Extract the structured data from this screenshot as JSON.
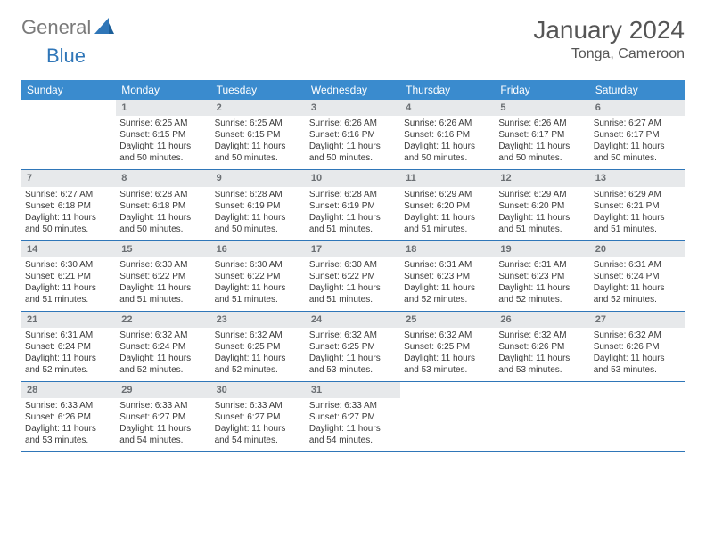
{
  "logo": {
    "text1": "General",
    "text2": "Blue",
    "color_general": "#7a7a7a",
    "color_blue": "#2f76b8"
  },
  "title": "January 2024",
  "location": "Tonga, Cameroon",
  "header_bg": "#3a8bce",
  "rule_color": "#2f76b8",
  "daynum_bg": "#e7e9eb",
  "day_names": [
    "Sunday",
    "Monday",
    "Tuesday",
    "Wednesday",
    "Thursday",
    "Friday",
    "Saturday"
  ],
  "weeks": [
    [
      {
        "n": "",
        "sr": "",
        "ss": "",
        "dl": ""
      },
      {
        "n": "1",
        "sr": "Sunrise: 6:25 AM",
        "ss": "Sunset: 6:15 PM",
        "dl": "Daylight: 11 hours and 50 minutes."
      },
      {
        "n": "2",
        "sr": "Sunrise: 6:25 AM",
        "ss": "Sunset: 6:15 PM",
        "dl": "Daylight: 11 hours and 50 minutes."
      },
      {
        "n": "3",
        "sr": "Sunrise: 6:26 AM",
        "ss": "Sunset: 6:16 PM",
        "dl": "Daylight: 11 hours and 50 minutes."
      },
      {
        "n": "4",
        "sr": "Sunrise: 6:26 AM",
        "ss": "Sunset: 6:16 PM",
        "dl": "Daylight: 11 hours and 50 minutes."
      },
      {
        "n": "5",
        "sr": "Sunrise: 6:26 AM",
        "ss": "Sunset: 6:17 PM",
        "dl": "Daylight: 11 hours and 50 minutes."
      },
      {
        "n": "6",
        "sr": "Sunrise: 6:27 AM",
        "ss": "Sunset: 6:17 PM",
        "dl": "Daylight: 11 hours and 50 minutes."
      }
    ],
    [
      {
        "n": "7",
        "sr": "Sunrise: 6:27 AM",
        "ss": "Sunset: 6:18 PM",
        "dl": "Daylight: 11 hours and 50 minutes."
      },
      {
        "n": "8",
        "sr": "Sunrise: 6:28 AM",
        "ss": "Sunset: 6:18 PM",
        "dl": "Daylight: 11 hours and 50 minutes."
      },
      {
        "n": "9",
        "sr": "Sunrise: 6:28 AM",
        "ss": "Sunset: 6:19 PM",
        "dl": "Daylight: 11 hours and 50 minutes."
      },
      {
        "n": "10",
        "sr": "Sunrise: 6:28 AM",
        "ss": "Sunset: 6:19 PM",
        "dl": "Daylight: 11 hours and 51 minutes."
      },
      {
        "n": "11",
        "sr": "Sunrise: 6:29 AM",
        "ss": "Sunset: 6:20 PM",
        "dl": "Daylight: 11 hours and 51 minutes."
      },
      {
        "n": "12",
        "sr": "Sunrise: 6:29 AM",
        "ss": "Sunset: 6:20 PM",
        "dl": "Daylight: 11 hours and 51 minutes."
      },
      {
        "n": "13",
        "sr": "Sunrise: 6:29 AM",
        "ss": "Sunset: 6:21 PM",
        "dl": "Daylight: 11 hours and 51 minutes."
      }
    ],
    [
      {
        "n": "14",
        "sr": "Sunrise: 6:30 AM",
        "ss": "Sunset: 6:21 PM",
        "dl": "Daylight: 11 hours and 51 minutes."
      },
      {
        "n": "15",
        "sr": "Sunrise: 6:30 AM",
        "ss": "Sunset: 6:22 PM",
        "dl": "Daylight: 11 hours and 51 minutes."
      },
      {
        "n": "16",
        "sr": "Sunrise: 6:30 AM",
        "ss": "Sunset: 6:22 PM",
        "dl": "Daylight: 11 hours and 51 minutes."
      },
      {
        "n": "17",
        "sr": "Sunrise: 6:30 AM",
        "ss": "Sunset: 6:22 PM",
        "dl": "Daylight: 11 hours and 51 minutes."
      },
      {
        "n": "18",
        "sr": "Sunrise: 6:31 AM",
        "ss": "Sunset: 6:23 PM",
        "dl": "Daylight: 11 hours and 52 minutes."
      },
      {
        "n": "19",
        "sr": "Sunrise: 6:31 AM",
        "ss": "Sunset: 6:23 PM",
        "dl": "Daylight: 11 hours and 52 minutes."
      },
      {
        "n": "20",
        "sr": "Sunrise: 6:31 AM",
        "ss": "Sunset: 6:24 PM",
        "dl": "Daylight: 11 hours and 52 minutes."
      }
    ],
    [
      {
        "n": "21",
        "sr": "Sunrise: 6:31 AM",
        "ss": "Sunset: 6:24 PM",
        "dl": "Daylight: 11 hours and 52 minutes."
      },
      {
        "n": "22",
        "sr": "Sunrise: 6:32 AM",
        "ss": "Sunset: 6:24 PM",
        "dl": "Daylight: 11 hours and 52 minutes."
      },
      {
        "n": "23",
        "sr": "Sunrise: 6:32 AM",
        "ss": "Sunset: 6:25 PM",
        "dl": "Daylight: 11 hours and 52 minutes."
      },
      {
        "n": "24",
        "sr": "Sunrise: 6:32 AM",
        "ss": "Sunset: 6:25 PM",
        "dl": "Daylight: 11 hours and 53 minutes."
      },
      {
        "n": "25",
        "sr": "Sunrise: 6:32 AM",
        "ss": "Sunset: 6:25 PM",
        "dl": "Daylight: 11 hours and 53 minutes."
      },
      {
        "n": "26",
        "sr": "Sunrise: 6:32 AM",
        "ss": "Sunset: 6:26 PM",
        "dl": "Daylight: 11 hours and 53 minutes."
      },
      {
        "n": "27",
        "sr": "Sunrise: 6:32 AM",
        "ss": "Sunset: 6:26 PM",
        "dl": "Daylight: 11 hours and 53 minutes."
      }
    ],
    [
      {
        "n": "28",
        "sr": "Sunrise: 6:33 AM",
        "ss": "Sunset: 6:26 PM",
        "dl": "Daylight: 11 hours and 53 minutes."
      },
      {
        "n": "29",
        "sr": "Sunrise: 6:33 AM",
        "ss": "Sunset: 6:27 PM",
        "dl": "Daylight: 11 hours and 54 minutes."
      },
      {
        "n": "30",
        "sr": "Sunrise: 6:33 AM",
        "ss": "Sunset: 6:27 PM",
        "dl": "Daylight: 11 hours and 54 minutes."
      },
      {
        "n": "31",
        "sr": "Sunrise: 6:33 AM",
        "ss": "Sunset: 6:27 PM",
        "dl": "Daylight: 11 hours and 54 minutes."
      },
      {
        "n": "",
        "sr": "",
        "ss": "",
        "dl": ""
      },
      {
        "n": "",
        "sr": "",
        "ss": "",
        "dl": ""
      },
      {
        "n": "",
        "sr": "",
        "ss": "",
        "dl": ""
      }
    ]
  ]
}
